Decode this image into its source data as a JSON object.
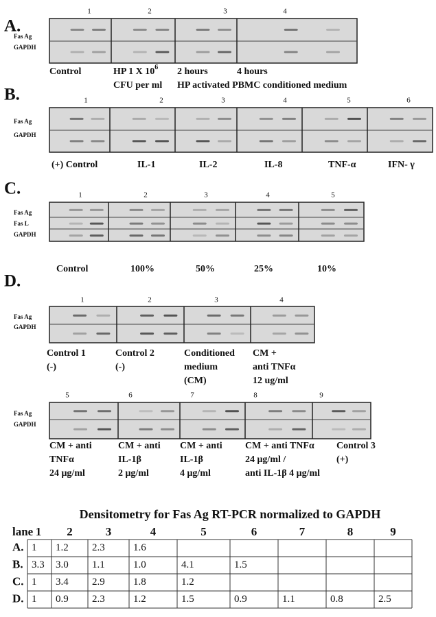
{
  "panels": [
    {
      "label": "A.",
      "lanes": [
        1,
        2,
        3,
        4
      ],
      "rows": [
        "Fas Ag",
        "GAPDH"
      ],
      "captions": [
        [
          "Control"
        ],
        [
          "HP 1 X 10",
          "CFU per ml"
        ],
        [
          "2 hours"
        ],
        [
          "4 hours"
        ]
      ],
      "superscript": "6",
      "note": "HP activated PBMC conditioned medium"
    },
    {
      "label": "B.",
      "lanes": [
        1,
        2,
        3,
        4,
        5,
        6
      ],
      "rows": [
        "Fas Ag",
        "GAPDH"
      ],
      "captions": [
        [
          "(+)  Control"
        ],
        [
          "IL-1"
        ],
        [
          "IL-2"
        ],
        [
          "IL-8"
        ],
        [
          "TNF-α"
        ],
        [
          "IFN- γ"
        ]
      ]
    },
    {
      "label": "C.",
      "lanes": [
        1,
        2,
        3,
        4,
        5
      ],
      "rows": [
        "Fas Ag",
        "Fas L",
        "GAPDH"
      ],
      "captions": [
        [
          "Control"
        ],
        [
          "100%"
        ],
        [
          "50%"
        ],
        [
          "25%"
        ],
        [
          "10%"
        ]
      ]
    },
    {
      "label": "D.",
      "lanes": [
        1,
        2,
        3,
        4
      ],
      "rows": [
        "Fas Ag",
        "GAPDH"
      ],
      "captions": [
        [
          "Control  1",
          "(-)"
        ],
        [
          "Control  2",
          "(-)"
        ],
        [
          "Conditioned",
          "medium",
          "(CM)"
        ],
        [
          "CM +",
          "anti TNFα",
          "12 ug/ml"
        ]
      ]
    },
    {
      "lanes": [
        5,
        6,
        7,
        8,
        9
      ],
      "rows": [
        "Fas Ag",
        "GAPDH"
      ],
      "captions": [
        [
          "CM + anti",
          "TNFα",
          "24 μg/ml"
        ],
        [
          "CM + anti",
          "IL-1β",
          "2 μg/ml"
        ],
        [
          "CM + anti",
          "IL-1β",
          "4 μg/ml"
        ],
        [
          "CM + anti TNFα",
          "24 μg/ml /",
          "anti IL-1β  4 μg/ml"
        ],
        [
          "Control 3",
          "(+)"
        ]
      ]
    }
  ],
  "table": {
    "title": "Densitometry for Fas Ag RT-PCR normalized to GAPDH",
    "header": [
      "lane",
      "1",
      "2",
      "3",
      "4",
      "5",
      "6",
      "7",
      "8",
      "9"
    ],
    "rows": [
      {
        "label": "A.",
        "cells": [
          "1",
          "1.2",
          "2.3",
          "1.6"
        ]
      },
      {
        "label": "B.",
        "cells": [
          "3.3",
          "3.0",
          "1.1",
          "1.0",
          "4.1",
          "1.5"
        ]
      },
      {
        "label": "C.",
        "cells": [
          "1",
          "3.4",
          "2.9",
          "1.8",
          "1.2"
        ]
      },
      {
        "label": "D.",
        "cells": [
          "1",
          "0.9",
          "2.3",
          "1.2",
          "1.5",
          "0.9",
          "1.1",
          "0.8",
          "2.5"
        ]
      }
    ]
  }
}
